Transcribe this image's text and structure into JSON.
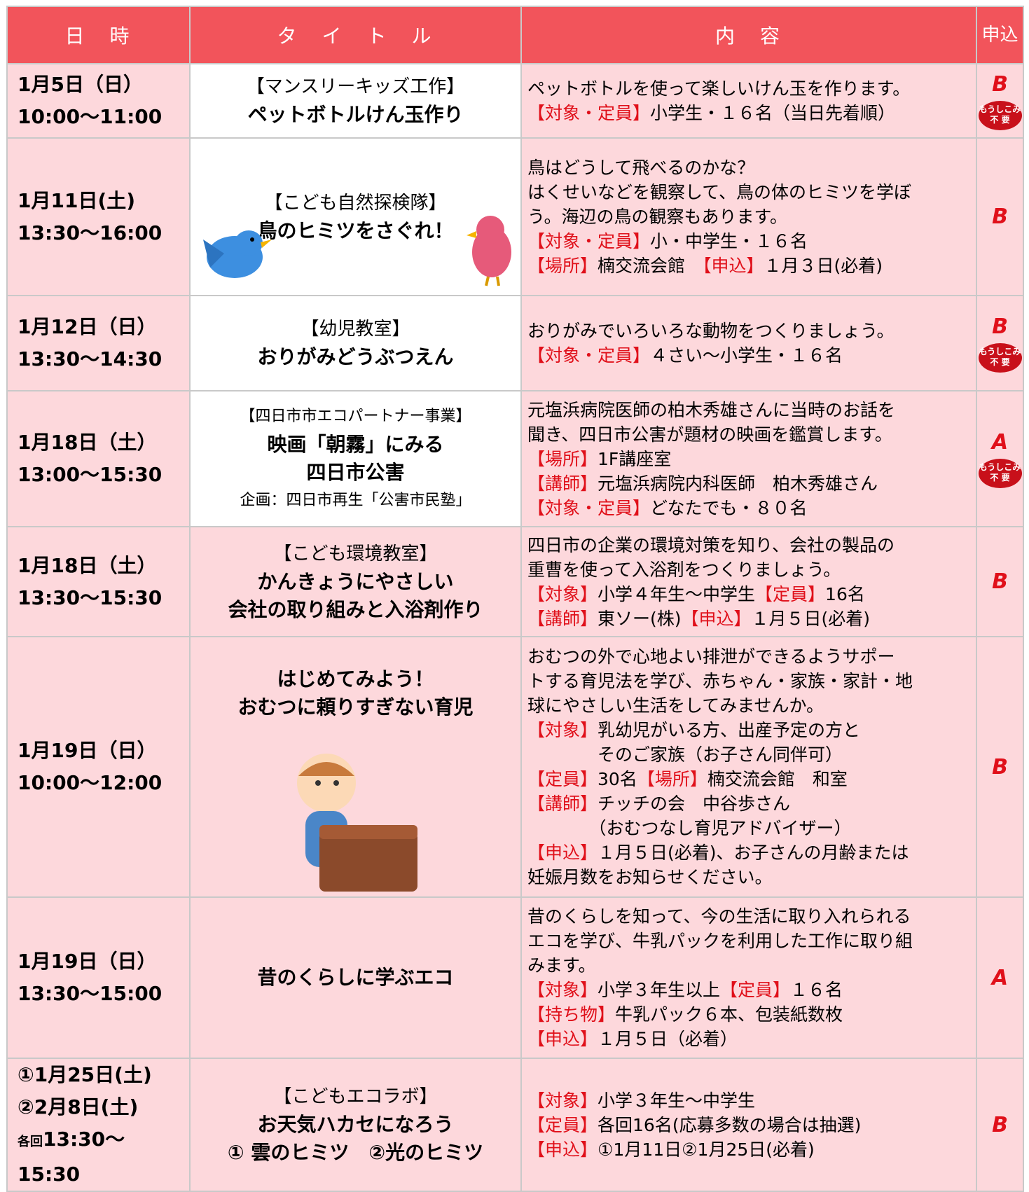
{
  "header": [
    "日　時",
    "タ　イ　ト　ル",
    "内　容",
    "申込"
  ],
  "rows": [
    {
      "date": [
        "1月5日（日）",
        "10:00〜11:00"
      ],
      "title": {
        "label": "【マンスリーキッズ工作】",
        "lines": [
          "ペットボトルけん玉作り"
        ]
      },
      "content": [
        [
          "ペットボトルを使って楽しいけん玉を作ります。"
        ],
        [
          "【対象・定員】",
          "小学生・１６名（当日先着順）"
        ]
      ],
      "apply": "B",
      "badge": [
        "もうしこみ",
        "不 要"
      ]
    },
    {
      "date": [
        "1月11日(土)",
        "13:30〜16:00"
      ],
      "title": {
        "label": "【こども自然探検隊】",
        "lines": [
          "鳥のヒミツをさぐれ！"
        ]
      },
      "content": [
        [
          "鳥はどうして飛べるのかな？"
        ],
        [
          "はくせいなどを観察して、鳥の体のヒミツを学ぼ"
        ],
        [
          "う。海辺の鳥の観察もあります。"
        ],
        [
          "【対象・定員】",
          "小・中学生・１６名"
        ],
        [
          "【場所】",
          "楠交流会館　",
          "【申込】",
          "１月３日(必着)"
        ]
      ],
      "apply": "B"
    },
    {
      "date": [
        "1月12日（日）",
        "13:30〜14:30"
      ],
      "title": {
        "label": "【幼児教室】",
        "lines": [
          "おりがみどうぶつえん"
        ]
      },
      "content": [
        [
          "おりがみでいろいろな動物をつくりましょう。"
        ],
        [
          "【対象・定員】",
          "４さい〜小学生・１６名"
        ]
      ],
      "apply": "B",
      "badge": [
        "もうしこみ",
        "不 要"
      ]
    },
    {
      "date": [
        "1月18日（土）",
        "13:00〜15:30"
      ],
      "title": {
        "label": "【四日市市エコパートナー事業】",
        "lines": [
          "映画「朝霧」にみる",
          "四日市公害"
        ],
        "note": "企画：四日市再生「公害市民塾」"
      },
      "content": [
        [
          "元塩浜病院医師の柏木秀雄さんに当時のお話を"
        ],
        [
          "聞き、四日市公害が題材の映画を鑑賞します。"
        ],
        [
          "【場所】",
          "1F講座室"
        ],
        [
          "【講師】",
          "元塩浜病院内科医師　柏木秀雄さん"
        ],
        [
          "【対象・定員】",
          "どなたでも・８０名"
        ]
      ],
      "apply": "A",
      "badge": [
        "もうしこみ",
        "不 要"
      ]
    },
    {
      "date": [
        "1月18日（土）",
        "13:30〜15:30"
      ],
      "title": {
        "label": "【こども環境教室】",
        "lines": [
          "かんきょうにやさしい",
          "会社の取り組みと入浴剤作り"
        ]
      },
      "content": [
        [
          "四日市の企業の環境対策を知り、会社の製品の"
        ],
        [
          "重曹を使って入浴剤をつくりましょう。"
        ],
        [
          "【対象】",
          "小学４年生〜中学生",
          "【定員】",
          "16名"
        ],
        [
          "【講師】",
          "東ソー(株)",
          "【申込】",
          "１月５日(必着)"
        ]
      ],
      "apply": "B"
    },
    {
      "date": [
        "1月19日（日）",
        "10:00〜12:00"
      ],
      "title": {
        "lines": [
          "はじめてみよう！",
          "おむつに頼りすぎない育児"
        ]
      },
      "content": [
        [
          "おむつの外で心地よい排泄ができるようサポー"
        ],
        [
          "トする育児法を学び、赤ちゃん・家族・家計・地"
        ],
        [
          "球にやさしい生活をしてみませんか。"
        ],
        [
          "【対象】",
          "乳幼児がいる方、出産予定の方と"
        ],
        [
          "　　　　そのご家族（お子さん同伴可）"
        ],
        [
          "【定員】",
          "30名",
          "【場所】",
          "楠交流会館　和室"
        ],
        [
          "【講師】",
          "チッチの会　中谷歩さん"
        ],
        [
          "　　　　（おむつなし育児アドバイザー）"
        ],
        [
          "【申込】",
          "１月５日(必着)、お子さんの月齢または"
        ],
        [
          "妊娠月数をお知らせください。"
        ]
      ],
      "apply": "B"
    },
    {
      "date": [
        "1月19日（日）",
        "13:30〜15:00"
      ],
      "title": {
        "lines": [
          "昔のくらしに学ぶエコ"
        ]
      },
      "content": [
        [
          "昔のくらしを知って、今の生活に取り入れられる"
        ],
        [
          "エコを学び、牛乳パックを利用した工作に取り組"
        ],
        [
          "みます。"
        ],
        [
          "【対象】",
          "小学３年生以上",
          "【定員】",
          "１６名"
        ],
        [
          "【持ち物】",
          "牛乳パック６本、包装紙数枚"
        ],
        [
          "【申込】",
          "１月５日（必着）"
        ]
      ],
      "apply": "A"
    },
    {
      "date": [
        "①1月25日(土)",
        "②2月8日(土)",
        "13:30〜15:30"
      ],
      "time_prefix": "各回",
      "title": {
        "label": "【こどもエコラボ】",
        "lines": [
          "お天気ハカセになろう",
          "① 雲のヒミツ　②光のヒミツ"
        ]
      },
      "content": [
        [
          "【対象】",
          "小学３年生〜中学生"
        ],
        [
          "【定員】",
          "各回16名(応募多数の場合は抽選)"
        ],
        [
          "【申込】",
          "①1月11日②1月25日(必着)"
        ]
      ],
      "apply": "B"
    }
  ]
}
